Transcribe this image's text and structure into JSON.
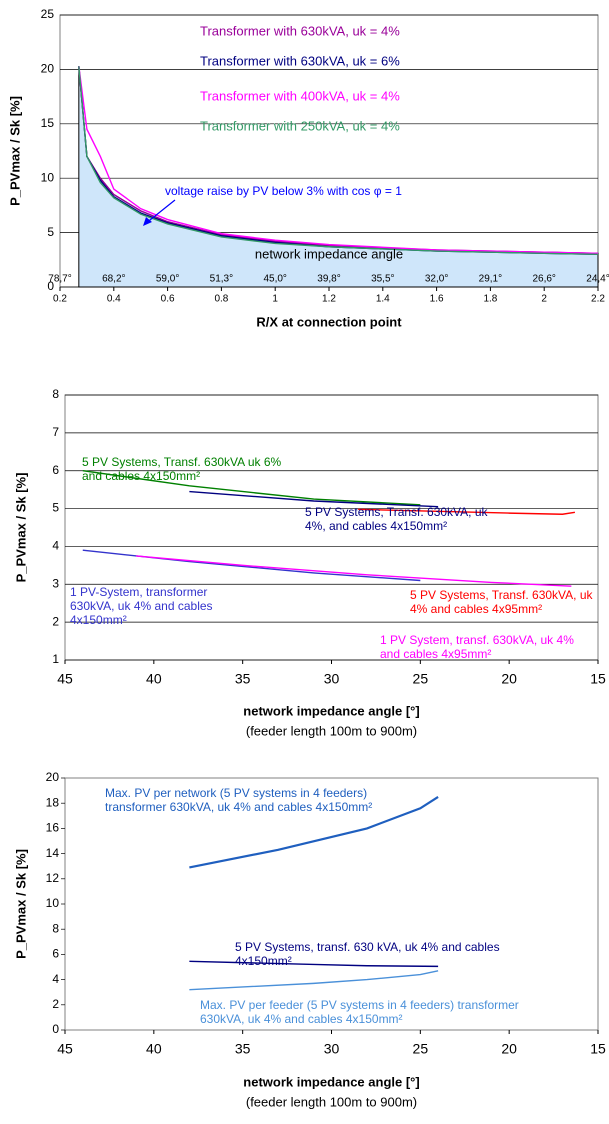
{
  "chart_data": [
    {
      "type": "line",
      "x_label": "R/X at connection point",
      "y_label": "P_PVmax / Sk [%]",
      "xlim": [
        0.2,
        2.2
      ],
      "ylim": [
        0,
        25
      ],
      "xticks": [
        0.2,
        0.4,
        0.6,
        0.8,
        1,
        1.2,
        1.4,
        1.6,
        1.8,
        2,
        2.2
      ],
      "yticks": [
        0,
        5,
        10,
        15,
        20,
        25
      ],
      "grid": true,
      "area_fill": "#cfe6fa",
      "angle_labels": [
        "78,7°",
        "68,2°",
        "59,0°",
        "51,3°",
        "45,0°",
        "39,8°",
        "35,5°",
        "32,0°",
        "29,1°",
        "26,6°",
        "24,4°"
      ],
      "annotations": [
        "voltage raise by PV below 3% with cos φ = 1",
        "network impedance angle"
      ],
      "x": [
        0.27,
        0.3,
        0.35,
        0.4,
        0.5,
        0.6,
        0.8,
        1.0,
        1.2,
        1.6,
        2.0,
        2.2
      ],
      "series": [
        {
          "name": "Transformer with 630kVA, uk = 4%",
          "color": "#990099",
          "values": [
            20.3,
            12,
            10,
            8.5,
            7,
            6,
            4.8,
            4.2,
            3.8,
            3.4,
            3.2,
            3.1
          ]
        },
        {
          "name": "Transformer with 630kVA, uk = 6%",
          "color": "#000080",
          "values": [
            20.3,
            12,
            9.8,
            8.3,
            6.8,
            5.9,
            4.7,
            4.1,
            3.7,
            3.3,
            3.1,
            3.0
          ]
        },
        {
          "name": "Transformer with 400kVA, uk = 4%",
          "color": "#ff00ff",
          "values": [
            20.3,
            14.5,
            12,
            9,
            7.2,
            6.2,
            4.9,
            4.3,
            3.9,
            3.4,
            3.2,
            3.1
          ]
        },
        {
          "name": "Transformer with 250kVA, uk = 4%",
          "color": "#339966",
          "values": [
            20.3,
            12,
            9.6,
            8.2,
            6.7,
            5.8,
            4.6,
            4.0,
            3.7,
            3.3,
            3.1,
            3.0
          ]
        }
      ]
    },
    {
      "type": "line",
      "x_label": "network impedance angle [°]",
      "subtitle": "(feeder length 100m to 900m)",
      "y_label": "P_PVmax / Sk [%]",
      "xlim": [
        45,
        15
      ],
      "ylim": [
        1,
        8
      ],
      "xticks": [
        45,
        40,
        35,
        30,
        25,
        20,
        15
      ],
      "yticks": [
        1,
        2,
        3,
        4,
        5,
        6,
        7,
        8
      ],
      "grid": true,
      "series": [
        {
          "name": "5 PV Systems, Transf. 630kVA uk 6% and cables 4x150mm²",
          "color": "#008000",
          "x": [
            44,
            38,
            31,
            25
          ],
          "values": [
            6.0,
            5.6,
            5.25,
            5.1
          ]
        },
        {
          "name": "5 PV Systems, Transf. 630kVA, uk 4%, and cables 4x150mm²",
          "color": "#000080",
          "x": [
            38,
            31,
            24
          ],
          "values": [
            5.45,
            5.2,
            5.05
          ]
        },
        {
          "name": "5 PV Systems, Transf.  630kVA, uk 4% and cables 4x95mm²",
          "color": "#ff0000",
          "x": [
            28.5,
            20,
            17,
            16.3
          ],
          "values": [
            4.98,
            4.88,
            4.85,
            4.9
          ]
        },
        {
          "name": "1 PV-System, transformer 630kVA,  uk 4% and cables 4x150mm²",
          "color": "#3333cc",
          "x": [
            44,
            38,
            31,
            25
          ],
          "values": [
            3.9,
            3.6,
            3.3,
            3.1
          ]
        },
        {
          "name": "1 PV System, transf. 630kVA, uk 4% and cables 4x95mm²",
          "color": "#ff00ff",
          "x": [
            41,
            35,
            28,
            21,
            16.5
          ],
          "values": [
            3.75,
            3.5,
            3.25,
            3.05,
            2.95
          ]
        }
      ]
    },
    {
      "type": "line",
      "x_label": "network impedance angle [°]",
      "subtitle": "(feeder length 100m to 900m)",
      "y_label": "P_PVmax / Sk [%]",
      "xlim": [
        45,
        15
      ],
      "ylim": [
        0,
        20
      ],
      "xticks": [
        45,
        40,
        35,
        30,
        25,
        20,
        15
      ],
      "yticks": [
        0,
        2,
        4,
        6,
        8,
        10,
        12,
        14,
        16,
        18,
        20
      ],
      "grid": false,
      "series": [
        {
          "name": "Max. PV per network (5 PV systems in 4 feeders) transformer 630kVA, uk 4% and cables 4x150mm²",
          "color": "#1f5fbf",
          "x": [
            38,
            33,
            28,
            25,
            24
          ],
          "values": [
            12.9,
            14.3,
            16,
            17.6,
            18.5
          ]
        },
        {
          "name": "5 PV Systems, transf.  630 kVA, uk 4% and cables 4x150mm²",
          "color": "#000080",
          "x": [
            38,
            31,
            28,
            24
          ],
          "values": [
            5.45,
            5.2,
            5.1,
            5.05
          ]
        },
        {
          "name": "Max. PV per feeder (5 PV systems in 4 feeders) transformer 630kVA, uk 4% and cables 4x150mm²",
          "color": "#4a90d9",
          "x": [
            38,
            31,
            28,
            25,
            24
          ],
          "values": [
            3.2,
            3.7,
            4.0,
            4.4,
            4.7
          ]
        }
      ]
    }
  ]
}
